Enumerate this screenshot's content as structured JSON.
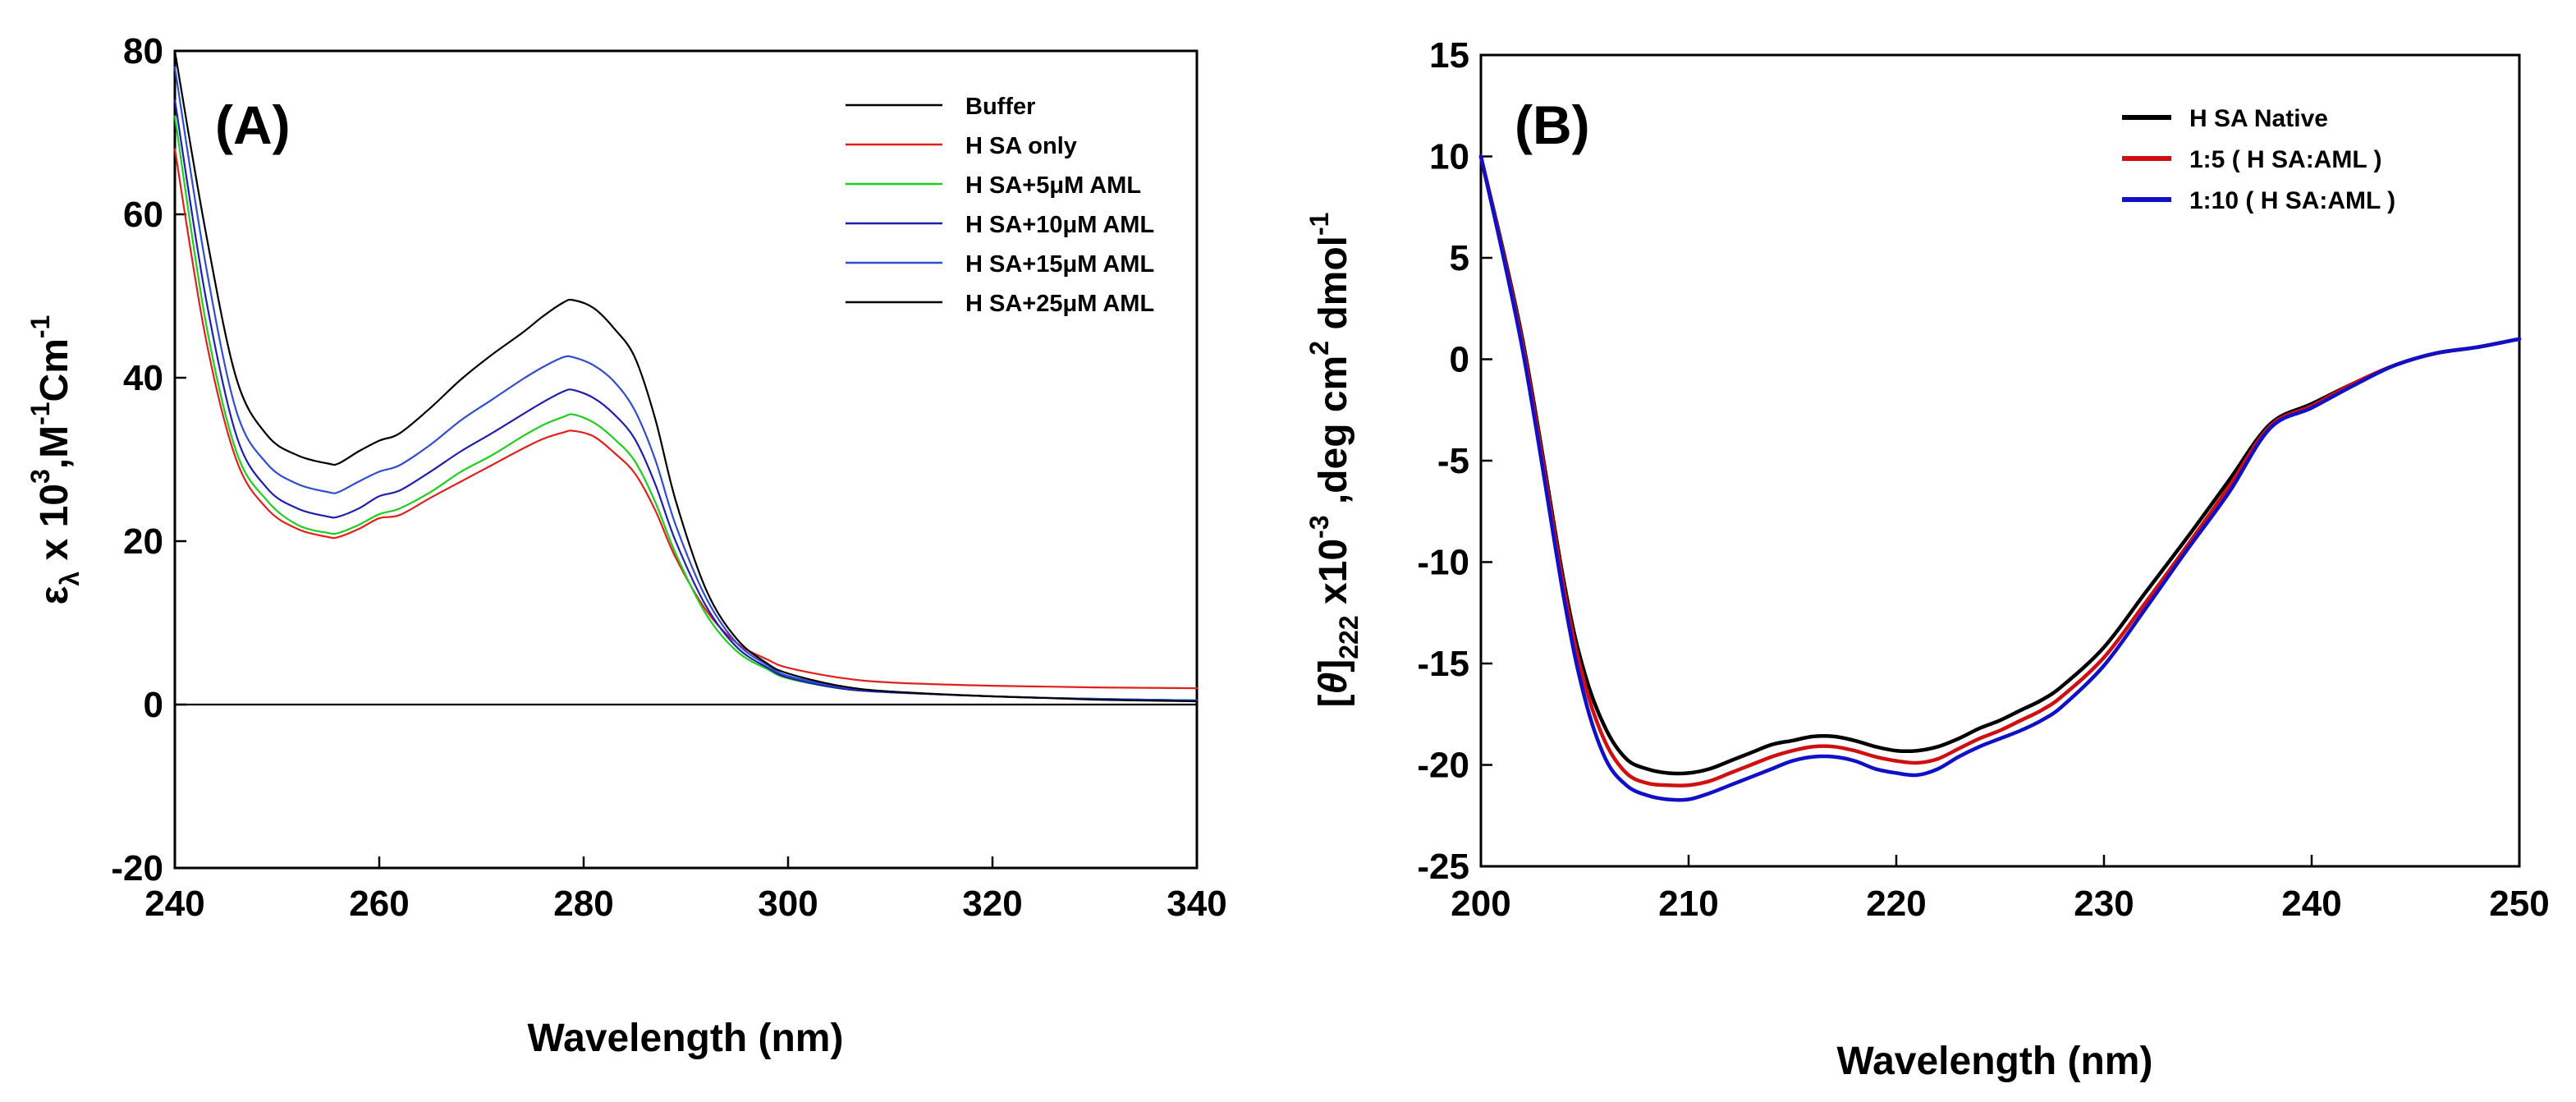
{
  "chart_data": [
    {
      "id": "A",
      "type": "line",
      "panel_label": "(A)",
      "xlabel": "Wavelength (nm)",
      "ylabel": {
        "symbol": "ε",
        "symbol_sub": "λ",
        "pre_sup": " x 10",
        "sup1": "3",
        "mid": ",M",
        "sup2": "-1",
        "post": "Cm",
        "sup3": "-1"
      },
      "xlim": [
        240,
        340
      ],
      "ylim": [
        -20,
        80
      ],
      "xticks": [
        "240",
        "260",
        "280",
        "300",
        "320",
        "340"
      ],
      "yticks": [
        "-20",
        "0",
        "20",
        "40",
        "60",
        "80"
      ],
      "zero_line": true,
      "legend_position": "top-right",
      "series": [
        {
          "name": "Buffer",
          "color": "#000000",
          "x": [
            240,
            340
          ],
          "y": [
            0,
            0
          ]
        },
        {
          "name": "HSA only",
          "color": "#e0201c",
          "x": [
            240,
            243,
            246,
            249,
            252,
            255,
            256,
            258,
            260,
            262,
            265,
            268,
            271,
            274,
            276,
            278,
            279,
            281,
            283,
            285,
            287,
            289,
            292,
            295,
            298,
            300,
            305,
            310,
            320,
            330,
            340
          ],
          "y": [
            68,
            45,
            30,
            24,
            21.5,
            20.5,
            20.5,
            21.5,
            22.8,
            23.2,
            25.3,
            27.3,
            29.3,
            31.3,
            32.5,
            33.3,
            33.5,
            32.8,
            30.8,
            28.3,
            23.8,
            18,
            11.5,
            7.5,
            5.5,
            4.5,
            3.3,
            2.7,
            2.3,
            2.1,
            2
          ]
        },
        {
          "name": "HSA+5μM AML",
          "color": "#1fcf1f",
          "x": [
            240,
            243,
            246,
            249,
            252,
            255,
            256,
            258,
            260,
            262,
            265,
            268,
            271,
            274,
            276,
            278,
            279,
            281,
            283,
            285,
            287,
            289,
            292,
            295,
            298,
            300,
            305,
            310,
            320,
            330,
            340
          ],
          "y": [
            72,
            47,
            31,
            25,
            22,
            21,
            21,
            22,
            23.3,
            24,
            26,
            28.5,
            30.5,
            32.8,
            34.2,
            35.2,
            35.5,
            34.5,
            32.5,
            29.8,
            24.8,
            18.5,
            11,
            6.5,
            4.3,
            3.2,
            2,
            1.5,
            1,
            0.7,
            0.5
          ]
        },
        {
          "name": "HSA+10μM AML",
          "color": "#1f1faf",
          "x": [
            240,
            243,
            246,
            249,
            252,
            255,
            256,
            258,
            260,
            262,
            265,
            268,
            271,
            274,
            276,
            278,
            279,
            281,
            283,
            285,
            287,
            289,
            292,
            295,
            298,
            300,
            305,
            310,
            320,
            330,
            340
          ],
          "y": [
            74,
            50,
            33,
            26.5,
            24,
            23,
            23,
            24,
            25.5,
            26.2,
            28.5,
            31,
            33.2,
            35.5,
            37,
            38.3,
            38.5,
            37.5,
            35.5,
            32.5,
            27,
            20,
            12,
            7,
            4.5,
            3.3,
            2,
            1.5,
            1,
            0.7,
            0.5
          ]
        },
        {
          "name": "HSA+15μM AML",
          "color": "#2f4fcf",
          "x": [
            240,
            243,
            246,
            249,
            252,
            255,
            256,
            258,
            260,
            262,
            265,
            268,
            271,
            274,
            276,
            278,
            279,
            281,
            283,
            285,
            287,
            289,
            292,
            295,
            298,
            300,
            305,
            310,
            320,
            330,
            340
          ],
          "y": [
            78,
            54,
            36,
            29.5,
            27,
            26,
            26,
            27.3,
            28.5,
            29.3,
            31.8,
            34.8,
            37.3,
            39.8,
            41.3,
            42.5,
            42.5,
            41.5,
            39.5,
            36,
            30,
            22,
            13,
            7.5,
            4.8,
            3.5,
            2.2,
            1.6,
            1,
            0.7,
            0.5
          ]
        },
        {
          "name": "HSA+25μM AML",
          "color": "#000000",
          "x": [
            240,
            243,
            246,
            249,
            252,
            255,
            256,
            258,
            260,
            262,
            265,
            268,
            271,
            274,
            276,
            278,
            279,
            281,
            283,
            285,
            287,
            289,
            292,
            295,
            298,
            300,
            305,
            310,
            320,
            330,
            340
          ],
          "y": [
            80,
            58,
            40,
            33,
            30.5,
            29.5,
            29.5,
            31,
            32.3,
            33.2,
            36.3,
            39.8,
            42.8,
            45.5,
            47.5,
            49.2,
            49.5,
            48.5,
            46,
            42.5,
            35,
            25,
            14,
            8,
            5,
            3.8,
            2.3,
            1.6,
            1,
            0.6,
            0.4
          ]
        }
      ],
      "legend_order": [
        "Buffer",
        "HSA only",
        "HSA+5μM AML",
        "HSA+10μM AML",
        "HSA+15μM AML",
        "HSA+25μM AML"
      ],
      "legend_labels": [
        "Buffer",
        "H SA only",
        "H SA+5μM AML",
        "H SA+10μM AML",
        "H SA+15μM AML",
        "H SA+25μM AML"
      ]
    },
    {
      "id": "B",
      "type": "line",
      "panel_label": "(B)",
      "xlabel": "Wavelength (nm)",
      "ylabel": {
        "theta": "θ",
        "sub": "222",
        "mid": " x10",
        "sup1": "-3",
        "post": " ,deg cm",
        "sup2": "2",
        "post2": " dmol",
        "sup3": "-1"
      },
      "xlim": [
        200,
        250
      ],
      "ylim": [
        -25,
        15
      ],
      "xticks": [
        "200",
        "210",
        "220",
        "230",
        "240",
        "250"
      ],
      "yticks": [
        "15",
        "10",
        "5",
        "0",
        "-5",
        "-10",
        "-15",
        "-20",
        "-25"
      ],
      "legend_position": "top-right",
      "series": [
        {
          "name": "HSA Native",
          "color": "#000000",
          "x": [
            200,
            202,
            204,
            205,
            206,
            207,
            208,
            209,
            210,
            211,
            212,
            213,
            214,
            215,
            216,
            217,
            218,
            219,
            220,
            221,
            222,
            223,
            224,
            225,
            226,
            227,
            228,
            230,
            232,
            234,
            236,
            238,
            240,
            242,
            244,
            246,
            248,
            250
          ],
          "y": [
            10,
            1,
            -11,
            -15.5,
            -18.2,
            -19.7,
            -20.2,
            -20.4,
            -20.4,
            -20.2,
            -19.8,
            -19.4,
            -19,
            -18.8,
            -18.6,
            -18.6,
            -18.8,
            -19.1,
            -19.3,
            -19.3,
            -19.1,
            -18.7,
            -18.2,
            -17.8,
            -17.3,
            -16.8,
            -16.1,
            -14.2,
            -11.5,
            -8.8,
            -6,
            -3.2,
            -2.2,
            -1.2,
            -0.3,
            0.3,
            0.6,
            1
          ]
        },
        {
          "name": "1:5 (HSA:AML)",
          "color": "#d01010",
          "x": [
            200,
            202,
            204,
            205,
            206,
            207,
            208,
            209,
            210,
            211,
            212,
            213,
            214,
            215,
            216,
            217,
            218,
            219,
            220,
            221,
            222,
            223,
            224,
            225,
            226,
            227,
            228,
            230,
            232,
            234,
            236,
            238,
            240,
            242,
            244,
            246,
            248,
            250
          ],
          "y": [
            10,
            0.8,
            -11.3,
            -16,
            -18.9,
            -20.4,
            -20.9,
            -21,
            -21,
            -20.8,
            -20.4,
            -20,
            -19.6,
            -19.3,
            -19.1,
            -19.1,
            -19.3,
            -19.6,
            -19.8,
            -19.9,
            -19.7,
            -19.2,
            -18.7,
            -18.3,
            -17.8,
            -17.3,
            -16.6,
            -14.7,
            -12,
            -9.2,
            -6.3,
            -3.3,
            -2.3,
            -1.2,
            -0.3,
            0.3,
            0.6,
            1
          ]
        },
        {
          "name": "1:10 (HSA:AML)",
          "color": "#1010c8",
          "x": [
            200,
            202,
            204,
            205,
            206,
            207,
            208,
            209,
            210,
            211,
            212,
            213,
            214,
            215,
            216,
            217,
            218,
            219,
            220,
            221,
            222,
            223,
            224,
            225,
            226,
            227,
            228,
            230,
            232,
            234,
            236,
            238,
            240,
            242,
            244,
            246,
            248,
            250
          ],
          "y": [
            10,
            0.5,
            -11.8,
            -16.7,
            -19.7,
            -21,
            -21.5,
            -21.7,
            -21.7,
            -21.4,
            -21,
            -20.6,
            -20.2,
            -19.8,
            -19.6,
            -19.6,
            -19.8,
            -20.2,
            -20.4,
            -20.5,
            -20.2,
            -19.6,
            -19.1,
            -18.7,
            -18.3,
            -17.8,
            -17.1,
            -15.1,
            -12.3,
            -9.4,
            -6.6,
            -3.4,
            -2.4,
            -1.3,
            -0.3,
            0.3,
            0.6,
            1
          ]
        }
      ],
      "legend_order": [
        "HSA Native",
        "1:5 (HSA:AML)",
        "1:10 (HSA:AML)"
      ],
      "legend_labels": [
        "H SA Native",
        "1:5 ( H SA:AML )",
        "1:10 ( H SA:AML )"
      ]
    }
  ]
}
